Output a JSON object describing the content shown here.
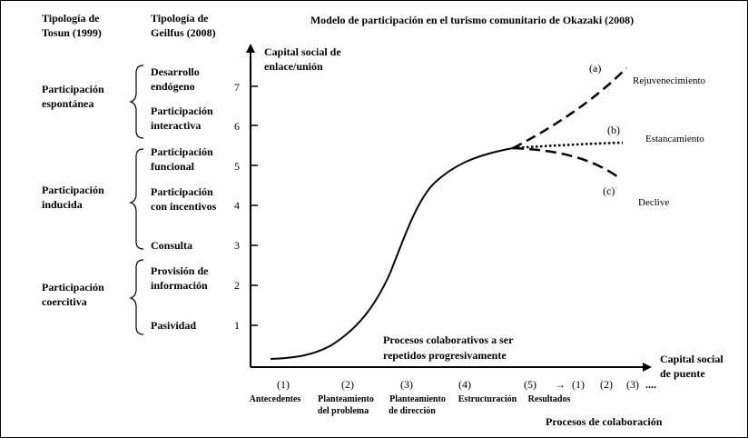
{
  "title": "Modelo de participación en el turismo comunitario de Okazaki (2008)",
  "columns": {
    "tosun": [
      "Tipología de",
      "Tosun (1999)"
    ],
    "geilfus": [
      "Tipología de",
      "Geilfus (2008)"
    ]
  },
  "tosun_groups": [
    {
      "lines": [
        "Participación",
        "espontánea"
      ]
    },
    {
      "lines": [
        "Participación",
        "inducida"
      ]
    },
    {
      "lines": [
        "Participación",
        "coercitiva"
      ]
    }
  ],
  "geilfus_levels": [
    {
      "level": "7",
      "lines": [
        "Desarrollo",
        "endógeno"
      ]
    },
    {
      "level": "6",
      "lines": [
        "Participación",
        "interactiva"
      ]
    },
    {
      "level": "5",
      "lines": [
        "Participación",
        "funcional"
      ]
    },
    {
      "level": "4",
      "lines": [
        "Participación",
        "con incentivos"
      ]
    },
    {
      "level": "3",
      "lines": [
        "Consulta"
      ]
    },
    {
      "level": "2",
      "lines": [
        "Provisión de",
        "información"
      ]
    },
    {
      "level": "1",
      "lines": [
        "Pasividad"
      ]
    }
  ],
  "y_axis_label": [
    "Capital social de",
    "enlace/unión"
  ],
  "x_axis_label": [
    "Capital social",
    "de puente"
  ],
  "x_axis_title": "Procesos de colaboración",
  "process_note": [
    "Procesos colaborativos a ser",
    "repetidos progresivamente"
  ],
  "stages": [
    {
      "num": "(1)",
      "lines": [
        "Antecedentes"
      ]
    },
    {
      "num": "(2)",
      "lines": [
        "Planteamiento",
        "del problema"
      ]
    },
    {
      "num": "(3)",
      "lines": [
        "Planteamiento",
        "de dirección"
      ]
    },
    {
      "num": "(4)",
      "lines": [
        "Estructuración"
      ]
    },
    {
      "num": "(5)",
      "lines": [
        "Resultados"
      ]
    }
  ],
  "repeat": {
    "arrow": "→",
    "nums": [
      "(1)",
      "(2)",
      "(3)"
    ],
    "ellipsis": "...."
  },
  "scenarios": [
    {
      "tag": "(a)",
      "name": "Rejuvenecimiento"
    },
    {
      "tag": "(b)",
      "name": "Estancamiento"
    },
    {
      "tag": "(c)",
      "name": "Declive"
    }
  ]
}
